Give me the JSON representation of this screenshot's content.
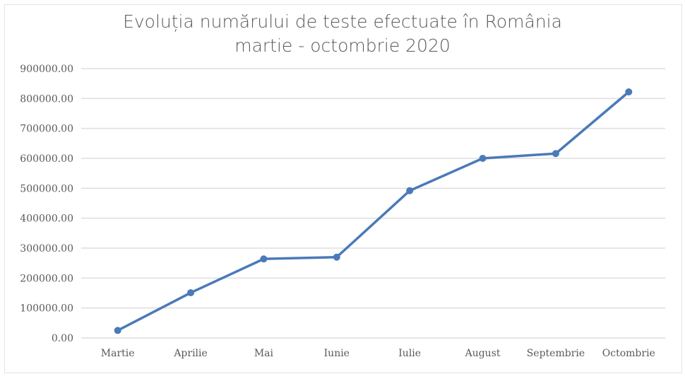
{
  "chart_data": {
    "type": "line",
    "title": "Evoluția numărului de teste efectuate în România",
    "subtitle": "martie - octombrie 2020",
    "xlabel": "",
    "ylabel": "",
    "categories": [
      "Martie",
      "Aprilie",
      "Mai",
      "Iunie",
      "Iulie",
      "August",
      "Septembrie",
      "Octombrie"
    ],
    "series": [
      {
        "values": [
          25000,
          151000,
          264000,
          270000,
          492000,
          600000,
          616000,
          822000
        ],
        "color": "#4a7ab8"
      }
    ],
    "ylim": [
      0,
      900000
    ],
    "yticks": [
      "0.00",
      "100000.00",
      "200000.00",
      "300000.00",
      "400000.00",
      "500000.00",
      "600000.00",
      "700000.00",
      "800000.00",
      "900000.00"
    ],
    "grid": true,
    "legend": "none",
    "markers": true
  }
}
